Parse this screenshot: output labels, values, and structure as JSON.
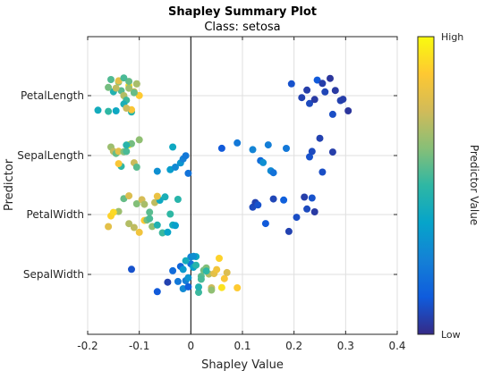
{
  "chart_data": {
    "type": "scatter",
    "title": "Shapley Summary Plot",
    "subtitle": "Class: setosa",
    "xlabel": "Shapley Value",
    "ylabel": "Predictor",
    "xlim": [
      -0.2,
      0.4
    ],
    "x_ticks": [
      "-0.2",
      "-0.1",
      "0",
      "0.1",
      "0.2",
      "0.3",
      "0.4"
    ],
    "x_tick_values": [
      -0.2,
      -0.1,
      0,
      0.1,
      0.2,
      0.3,
      0.4
    ],
    "categories": [
      "PetalLength",
      "SepalLength",
      "PetalWidth",
      "SepalWidth"
    ],
    "grid": true,
    "reference_line_x": 0,
    "colorbar": {
      "label": "Predictor Value",
      "high_label": "High",
      "low_label": "Low",
      "colormap": "parula",
      "stops": [
        "#352a87",
        "#0f5cdd",
        "#1481d6",
        "#06a4ca",
        "#2eb7a4",
        "#87bf77",
        "#d1bb59",
        "#fec832",
        "#f9fb0e"
      ]
    },
    "series": [
      {
        "category": "PetalLength",
        "points": [
          {
            "x": -0.18,
            "v": 0.42
          },
          {
            "x": -0.16,
            "v": 0.5
          },
          {
            "x": -0.155,
            "v": 0.55
          },
          {
            "x": -0.15,
            "v": 0.46
          },
          {
            "x": -0.145,
            "v": 0.4
          },
          {
            "x": -0.14,
            "v": 0.62
          },
          {
            "x": -0.135,
            "v": 0.56
          },
          {
            "x": -0.13,
            "v": 0.7
          },
          {
            "x": -0.125,
            "v": 0.52
          },
          {
            "x": -0.12,
            "v": 0.92
          },
          {
            "x": -0.12,
            "v": 0.58
          },
          {
            "x": -0.115,
            "v": 0.48
          },
          {
            "x": -0.11,
            "v": 0.76
          },
          {
            "x": -0.105,
            "v": 0.64
          },
          {
            "x": -0.1,
            "v": 0.88
          },
          {
            "x": -0.16,
            "v": 0.6
          },
          {
            "x": -0.14,
            "v": 0.8
          },
          {
            "x": -0.13,
            "v": 0.44
          },
          {
            "x": -0.12,
            "v": 0.66
          },
          {
            "x": -0.145,
            "v": 0.72
          },
          {
            "x": -0.13,
            "v": 0.54
          },
          {
            "x": -0.115,
            "v": 0.86
          },
          {
            "x": -0.105,
            "v": 0.68
          },
          {
            "x": -0.125,
            "v": 0.74
          },
          {
            "x": -0.11,
            "v": 0.58
          },
          {
            "x": 0.195,
            "v": 0.1
          },
          {
            "x": 0.215,
            "v": 0.06
          },
          {
            "x": 0.225,
            "v": 0.05
          },
          {
            "x": 0.23,
            "v": 0.08
          },
          {
            "x": 0.24,
            "v": 0.04
          },
          {
            "x": 0.245,
            "v": 0.12
          },
          {
            "x": 0.255,
            "v": 0.05
          },
          {
            "x": 0.26,
            "v": 0.07
          },
          {
            "x": 0.27,
            "v": 0.03
          },
          {
            "x": 0.275,
            "v": 0.09
          },
          {
            "x": 0.28,
            "v": 0.04
          },
          {
            "x": 0.29,
            "v": 0.06
          },
          {
            "x": 0.295,
            "v": 0.05
          },
          {
            "x": 0.305,
            "v": 0.03
          }
        ]
      },
      {
        "category": "SepalLength",
        "points": [
          {
            "x": -0.155,
            "v": 0.66
          },
          {
            "x": -0.15,
            "v": 0.72
          },
          {
            "x": -0.145,
            "v": 0.58
          },
          {
            "x": -0.14,
            "v": 0.8
          },
          {
            "x": -0.135,
            "v": 0.5
          },
          {
            "x": -0.13,
            "v": 0.62
          },
          {
            "x": -0.125,
            "v": 0.54
          },
          {
            "x": -0.12,
            "v": 0.96
          },
          {
            "x": -0.115,
            "v": 0.6
          },
          {
            "x": -0.11,
            "v": 0.74
          },
          {
            "x": -0.1,
            "v": 0.64
          },
          {
            "x": -0.125,
            "v": 0.48
          },
          {
            "x": -0.14,
            "v": 0.86
          },
          {
            "x": -0.105,
            "v": 0.56
          },
          {
            "x": -0.065,
            "v": 0.3
          },
          {
            "x": -0.04,
            "v": 0.35
          },
          {
            "x": -0.03,
            "v": 0.28
          },
          {
            "x": -0.02,
            "v": 0.32
          },
          {
            "x": -0.015,
            "v": 0.25
          },
          {
            "x": -0.01,
            "v": 0.22
          },
          {
            "x": -0.005,
            "v": 0.2
          },
          {
            "x": -0.035,
            "v": 0.4
          },
          {
            "x": 0.06,
            "v": 0.12
          },
          {
            "x": 0.09,
            "v": 0.22
          },
          {
            "x": 0.12,
            "v": 0.26
          },
          {
            "x": 0.135,
            "v": 0.18
          },
          {
            "x": 0.14,
            "v": 0.3
          },
          {
            "x": 0.15,
            "v": 0.24
          },
          {
            "x": 0.155,
            "v": 0.28
          },
          {
            "x": 0.16,
            "v": 0.2
          },
          {
            "x": 0.185,
            "v": 0.22
          },
          {
            "x": 0.23,
            "v": 0.1
          },
          {
            "x": 0.235,
            "v": 0.08
          },
          {
            "x": 0.25,
            "v": 0.06
          },
          {
            "x": 0.255,
            "v": 0.09
          },
          {
            "x": 0.275,
            "v": 0.05
          }
        ]
      },
      {
        "category": "PetalWidth",
        "points": [
          {
            "x": -0.16,
            "v": 0.8
          },
          {
            "x": -0.155,
            "v": 0.9
          },
          {
            "x": -0.14,
            "v": 0.66
          },
          {
            "x": -0.13,
            "v": 0.58
          },
          {
            "x": -0.12,
            "v": 0.7
          },
          {
            "x": -0.11,
            "v": 0.72
          },
          {
            "x": -0.105,
            "v": 0.62
          },
          {
            "x": -0.1,
            "v": 0.84
          },
          {
            "x": -0.095,
            "v": 0.76
          },
          {
            "x": -0.09,
            "v": 0.88
          },
          {
            "x": -0.085,
            "v": 0.6
          },
          {
            "x": -0.08,
            "v": 0.54
          },
          {
            "x": -0.075,
            "v": 0.64
          },
          {
            "x": -0.07,
            "v": 0.72
          },
          {
            "x": -0.065,
            "v": 0.46
          },
          {
            "x": -0.06,
            "v": 0.4
          },
          {
            "x": -0.055,
            "v": 0.52
          },
          {
            "x": -0.05,
            "v": 0.44
          },
          {
            "x": -0.045,
            "v": 0.38
          },
          {
            "x": -0.04,
            "v": 0.5
          },
          {
            "x": -0.035,
            "v": 0.42
          },
          {
            "x": -0.03,
            "v": 0.36
          },
          {
            "x": -0.025,
            "v": 0.48
          },
          {
            "x": -0.15,
            "v": 0.92
          },
          {
            "x": -0.12,
            "v": 0.78
          },
          {
            "x": -0.09,
            "v": 0.68
          },
          {
            "x": -0.08,
            "v": 0.56
          },
          {
            "x": -0.065,
            "v": 0.82
          },
          {
            "x": 0.12,
            "v": 0.08
          },
          {
            "x": 0.125,
            "v": 0.06
          },
          {
            "x": 0.13,
            "v": 0.1
          },
          {
            "x": 0.145,
            "v": 0.12
          },
          {
            "x": 0.16,
            "v": 0.07
          },
          {
            "x": 0.18,
            "v": 0.14
          },
          {
            "x": 0.19,
            "v": 0.06
          },
          {
            "x": 0.205,
            "v": 0.09
          },
          {
            "x": 0.22,
            "v": 0.05
          },
          {
            "x": 0.225,
            "v": 0.08
          },
          {
            "x": 0.235,
            "v": 0.1
          },
          {
            "x": 0.24,
            "v": 0.04
          }
        ]
      },
      {
        "category": "SepalWidth",
        "points": [
          {
            "x": -0.115,
            "v": 0.1
          },
          {
            "x": -0.065,
            "v": 0.12
          },
          {
            "x": -0.045,
            "v": 0.06
          },
          {
            "x": -0.035,
            "v": 0.18
          },
          {
            "x": -0.025,
            "v": 0.22
          },
          {
            "x": -0.02,
            "v": 0.16
          },
          {
            "x": -0.015,
            "v": 0.28
          },
          {
            "x": -0.01,
            "v": 0.24
          },
          {
            "x": -0.005,
            "v": 0.32
          },
          {
            "x": 0.0,
            "v": 0.2
          },
          {
            "x": 0.005,
            "v": 0.36
          },
          {
            "x": 0.01,
            "v": 0.4
          },
          {
            "x": -0.005,
            "v": 0.14
          },
          {
            "x": 0.0,
            "v": 0.26
          },
          {
            "x": 0.005,
            "v": 0.3
          },
          {
            "x": -0.01,
            "v": 0.42
          },
          {
            "x": 0.01,
            "v": 0.48
          },
          {
            "x": 0.015,
            "v": 0.52
          },
          {
            "x": 0.02,
            "v": 0.56
          },
          {
            "x": 0.025,
            "v": 0.6
          },
          {
            "x": 0.03,
            "v": 0.62
          },
          {
            "x": 0.035,
            "v": 0.7
          },
          {
            "x": 0.04,
            "v": 0.74
          },
          {
            "x": 0.045,
            "v": 0.8
          },
          {
            "x": 0.05,
            "v": 0.84
          },
          {
            "x": 0.055,
            "v": 0.9
          },
          {
            "x": 0.06,
            "v": 0.94
          },
          {
            "x": 0.065,
            "v": 0.86
          },
          {
            "x": 0.07,
            "v": 0.78
          },
          {
            "x": 0.09,
            "v": 0.88
          },
          {
            "x": 0.02,
            "v": 0.54
          },
          {
            "x": 0.03,
            "v": 0.5
          },
          {
            "x": 0.04,
            "v": 0.64
          },
          {
            "x": 0.015,
            "v": 0.46
          },
          {
            "x": -0.015,
            "v": 0.34
          }
        ]
      }
    ]
  }
}
